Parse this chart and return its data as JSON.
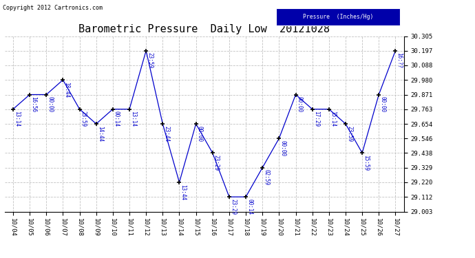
{
  "title": "Barometric Pressure  Daily Low  20121028",
  "copyright": "Copyright 2012 Cartronics.com",
  "legend_label": "Pressure  (Inches/Hg)",
  "x_labels": [
    "10/04",
    "10/05",
    "10/06",
    "10/07",
    "10/08",
    "10/09",
    "10/10",
    "10/11",
    "10/12",
    "10/13",
    "10/14",
    "10/15",
    "10/16",
    "10/17",
    "10/18",
    "10/19",
    "10/20",
    "10/21",
    "10/22",
    "10/23",
    "10/24",
    "10/25",
    "10/26",
    "10/27"
  ],
  "y_values": [
    29.763,
    29.871,
    29.871,
    29.98,
    29.763,
    29.654,
    29.763,
    29.763,
    30.197,
    29.654,
    29.22,
    29.654,
    29.438,
    29.112,
    29.112,
    29.329,
    29.546,
    29.871,
    29.763,
    29.763,
    29.654,
    29.438,
    29.871,
    30.197
  ],
  "point_labels": [
    "13:14",
    "16:56",
    "00:00",
    "18:44",
    "23:59",
    "14:44",
    "00:14",
    "13:14",
    "23:59",
    "23:44",
    "13:44",
    "00:00",
    "23:29",
    "23:29",
    "00:14",
    "02:59",
    "00:00",
    "00:00",
    "17:29",
    "15:14",
    "23:59",
    "15:59",
    "00:00",
    "16:??"
  ],
  "y_ticks": [
    29.003,
    29.112,
    29.22,
    29.329,
    29.438,
    29.546,
    29.654,
    29.763,
    29.871,
    29.98,
    30.088,
    30.197,
    30.305
  ],
  "y_min": 29.003,
  "y_max": 30.305,
  "line_color": "#0000cc",
  "marker_color": "#000000",
  "bg_color": "#ffffff",
  "grid_color": "#bbbbbb",
  "title_fontsize": 11,
  "copyright_fontsize": 6,
  "tick_fontsize": 6.5,
  "label_fontsize": 5.5
}
